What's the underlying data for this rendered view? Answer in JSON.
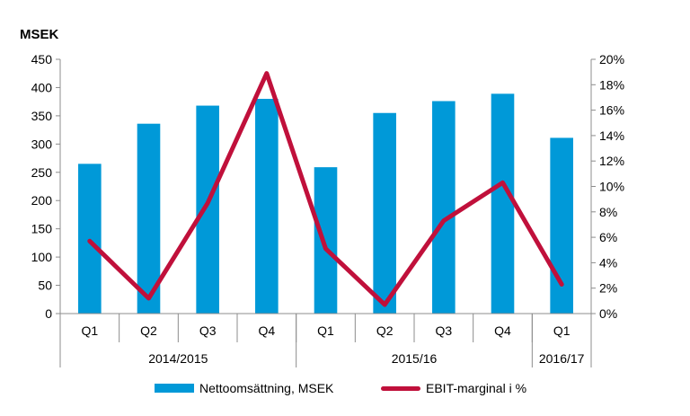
{
  "chart_data": {
    "type": "bar",
    "unit_title": "MSEK",
    "categories": [
      "Q1",
      "Q2",
      "Q3",
      "Q4",
      "Q1",
      "Q2",
      "Q3",
      "Q4",
      "Q1"
    ],
    "groups": [
      {
        "label": "2014/2015",
        "count": 4
      },
      {
        "label": "2015/16",
        "count": 4
      },
      {
        "label": "2016/17",
        "count": 1
      }
    ],
    "series": [
      {
        "name": "Nettoomsättning, MSEK",
        "type": "bar",
        "axis": "left",
        "color": "#0099d8",
        "values": [
          265,
          336,
          368,
          380,
          259,
          355,
          376,
          389,
          311
        ]
      },
      {
        "name": "EBIT-marginal i %",
        "type": "line",
        "axis": "right",
        "color": "#c0103b",
        "values": [
          5.7,
          1.2,
          8.7,
          18.9,
          5.1,
          0.7,
          7.3,
          10.3,
          2.3
        ]
      }
    ],
    "ylim": [
      0,
      450
    ],
    "yticks": [
      "0",
      "50",
      "100",
      "150",
      "200",
      "250",
      "300",
      "350",
      "400",
      "450"
    ],
    "y2lim": [
      0,
      20
    ],
    "y2ticks": [
      "0%",
      "2%",
      "4%",
      "6%",
      "8%",
      "10%",
      "12%",
      "14%",
      "16%",
      "18%",
      "20%"
    ],
    "grid": false,
    "legend": "bottom"
  }
}
